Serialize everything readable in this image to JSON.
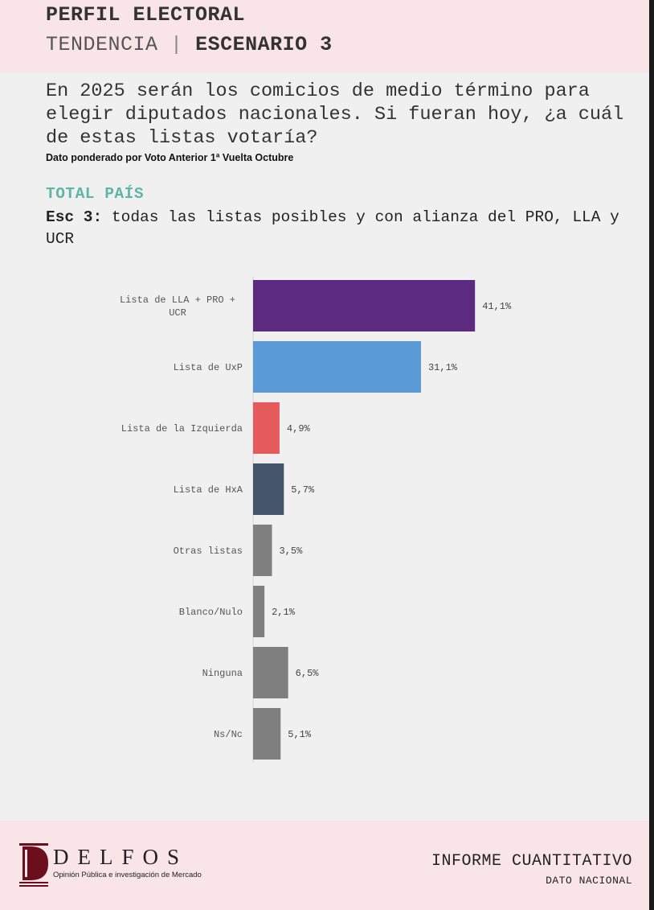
{
  "header": {
    "title": "PERFIL ELECTORAL",
    "subtitle_left": "TENDENCIA",
    "separator": "|",
    "subtitle_right": "ESCENARIO 3"
  },
  "question": "En 2025 serán los comicios de medio término para elegir diputados nacionales. Si fueran hoy, ¿a cuál de estas listas votaría?",
  "note": "Dato ponderado por Voto Anterior 1ª Vuelta Octubre",
  "section_label": "TOTAL PAÍS",
  "scenario": {
    "prefix": "Esc 3:",
    "text": " todas las listas posibles y con alianza del PRO, LLA y UCR"
  },
  "chart_data": {
    "type": "bar",
    "orientation": "horizontal",
    "categories": [
      "Lista de LLA + PRO + UCR",
      "Lista de UxP",
      "Lista de la Izquierda",
      "Lista de HxA",
      "Otras listas",
      "Blanco/Nulo",
      "Ninguna",
      "Ns/Nc"
    ],
    "values": [
      41.1,
      31.1,
      4.9,
      5.7,
      3.5,
      2.1,
      6.5,
      5.1
    ],
    "value_labels": [
      "41,1%",
      "31,1%",
      "4,9%",
      "5,7%",
      "3,5%",
      "2,1%",
      "6,5%",
      "5,1%"
    ],
    "colors": [
      "#5c2a7e",
      "#5b9bd5",
      "#e55a5a",
      "#44546a",
      "#7f7f7f",
      "#7f7f7f",
      "#7f7f7f",
      "#7f7f7f"
    ],
    "xlim": [
      0,
      45
    ],
    "grid": false,
    "legend": "none"
  },
  "footer": {
    "logo_name": "DELFOS",
    "logo_tagline": "Opinión Pública e investigación de Mercado",
    "report_title": "INFORME CUANTITATIVO",
    "report_subtitle": "DATO NACIONAL"
  },
  "colors": {
    "header_bg": "#f9e4e8",
    "page_bg": "#f1f0f0",
    "accent_teal": "#5fb6a3",
    "logo_maroon": "#6b0e1e"
  }
}
